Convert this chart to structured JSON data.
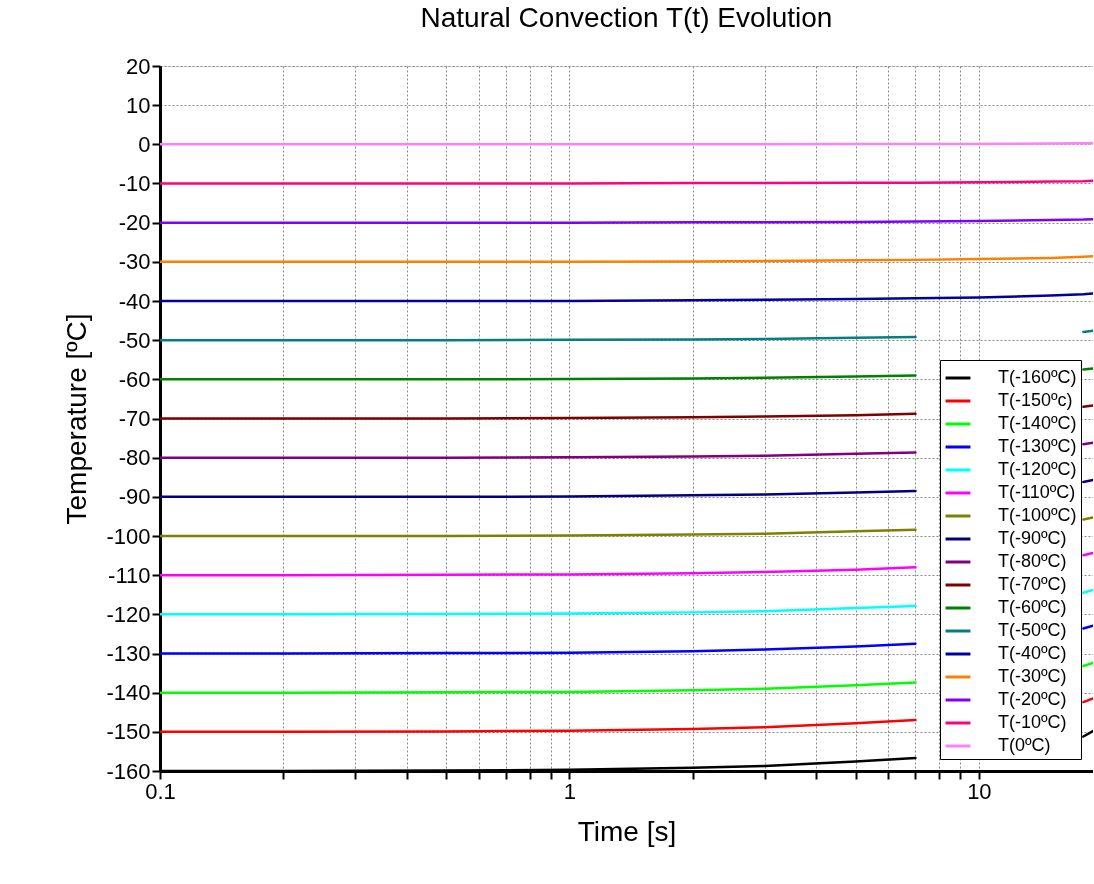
{
  "chart_data": {
    "type": "line",
    "title": "Natural Convection T(t) Evolution",
    "xlabel": "Time [s]",
    "ylabel": "Temperature [ºC]",
    "x": [
      0.1,
      0.2,
      0.5,
      1,
      2,
      3,
      5,
      7,
      10,
      15,
      18,
      19
    ],
    "series": [
      {
        "name": "T(-160ºC)",
        "color": "#000000",
        "values": [
          -160,
          -160,
          -159.9,
          -159.7,
          -159.2,
          -158.7,
          -157.6,
          -156.7,
          null,
          null,
          -151.2,
          -149.8
        ]
      },
      {
        "name": "T(-150ºc)",
        "color": "#ff0000",
        "values": [
          -150,
          -150,
          -149.9,
          -149.7,
          -149.3,
          -148.8,
          -147.8,
          -147,
          null,
          null,
          -142.4,
          -141.5
        ]
      },
      {
        "name": "T(-140ºC)",
        "color": "#00ff00",
        "values": [
          -140,
          -140,
          -139.9,
          -139.8,
          -139.4,
          -139,
          -138.1,
          -137.4,
          null,
          null,
          -133.2,
          -132.4
        ]
      },
      {
        "name": "T(-130ºC)",
        "color": "#0000ff",
        "values": [
          -130,
          -130,
          -129.9,
          -129.8,
          -129.4,
          -129,
          -128.2,
          -127.5,
          null,
          null,
          -123.6,
          -122.9
        ]
      },
      {
        "name": "T(-120ºC)",
        "color": "#00ffff",
        "values": [
          -120,
          -120,
          -119.9,
          -119.8,
          -119.5,
          -119.2,
          -118.4,
          -117.9,
          null,
          null,
          -114.5,
          -113.8
        ]
      },
      {
        "name": "T(-110ºC)",
        "color": "#ff00ff",
        "values": [
          -110,
          -110,
          -109.9,
          -109.8,
          -109.5,
          -109.2,
          -108.6,
          -108,
          null,
          null,
          -104.9,
          -104.3
        ]
      },
      {
        "name": "T(-100ºC)",
        "color": "#808000",
        "values": [
          -100,
          -100,
          -100,
          -99.9,
          -99.6,
          -99.4,
          -98.8,
          -98.4,
          null,
          null,
          -95.8,
          -95.3
        ]
      },
      {
        "name": "T(-90ºC)",
        "color": "#000080",
        "values": [
          -90,
          -90,
          -90,
          -89.9,
          -89.6,
          -89.4,
          -88.9,
          -88.5,
          null,
          null,
          -86.2,
          -85.7
        ]
      },
      {
        "name": "T(-80ºC)",
        "color": "#800080",
        "values": [
          -80,
          -80,
          -80,
          -79.9,
          -79.7,
          -79.5,
          -79,
          -78.7,
          null,
          null,
          -76.6,
          -76.2
        ]
      },
      {
        "name": "T(-70ºC)",
        "color": "#800000",
        "values": [
          -70,
          -70,
          -70,
          -69.9,
          -69.7,
          -69.5,
          -69.2,
          -68.8,
          null,
          null,
          -67,
          -66.7
        ]
      },
      {
        "name": "T(-60ºC)",
        "color": "#008000",
        "values": [
          -60,
          -60,
          -60,
          -59.9,
          -59.8,
          -59.6,
          -59.3,
          -59,
          null,
          null,
          -57.5,
          -57.2
        ]
      },
      {
        "name": "T(-50ºC)",
        "color": "#008080",
        "values": [
          -50,
          -50,
          -50,
          -49.9,
          -49.8,
          -49.7,
          -49.4,
          -49.2,
          null,
          null,
          -47.9,
          -47.6
        ]
      },
      {
        "name": "T(-40ºC)",
        "color": "#0000a0",
        "values": [
          -40,
          -40,
          -40,
          -40,
          -39.8,
          -39.7,
          -39.5,
          -39.3,
          -39.1,
          -38.6,
          -38.3,
          -38.1
        ]
      },
      {
        "name": "T(-30ºC)",
        "color": "#ff8000",
        "values": [
          -30,
          -30,
          -30,
          -30,
          -29.9,
          -29.8,
          -29.6,
          -29.5,
          -29.3,
          -29,
          -28.7,
          -28.6
        ]
      },
      {
        "name": "T(-20ºC)",
        "color": "#8000ff",
        "values": [
          -20,
          -20,
          -20,
          -20,
          -19.9,
          -19.9,
          -19.8,
          -19.7,
          -19.6,
          -19.3,
          -19.2,
          -19.1
        ]
      },
      {
        "name": "T(-10ºC)",
        "color": "#ff0080",
        "values": [
          -10,
          -10,
          -10,
          -10,
          -9.9,
          -9.9,
          -9.8,
          -9.8,
          -9.7,
          -9.5,
          -9.4,
          -9.3
        ]
      },
      {
        "name": "T(0ºC)",
        "color": "#ff80ff",
        "values": [
          0,
          0,
          0,
          0,
          0,
          0,
          0.1,
          0.1,
          0.1,
          0.2,
          0.3,
          0.3
        ]
      }
    ],
    "xlim": [
      0.1,
      19
    ],
    "ylim": [
      -160,
      20
    ],
    "xticks": [
      0.1,
      {
        "value": 0.2,
        "label": null
      },
      {
        "value": 0.3,
        "label": null
      },
      {
        "value": 0.4,
        "label": null
      },
      {
        "value": 0.5,
        "label": null
      },
      {
        "value": 0.6,
        "label": null
      },
      {
        "value": 0.7,
        "label": null
      },
      {
        "value": 0.8,
        "label": null
      },
      {
        "value": 0.9,
        "label": null
      },
      1,
      {
        "value": 2,
        "label": null
      },
      {
        "value": 3,
        "label": null
      },
      {
        "value": 4,
        "label": null
      },
      {
        "value": 5,
        "label": null
      },
      {
        "value": 6,
        "label": null
      },
      {
        "value": 7,
        "label": null
      },
      {
        "value": 8,
        "label": null
      },
      {
        "value": 9,
        "label": null
      },
      10
    ],
    "yticks": [
      -160,
      -150,
      -140,
      -130,
      -120,
      -110,
      -100,
      -90,
      -80,
      -70,
      -60,
      -50,
      -40,
      -30,
      -20,
      -10,
      0,
      10,
      20
    ],
    "log": "x",
    "grid": true,
    "legend": "bottom right",
    "marker": "none",
    "line_style": "solid"
  }
}
